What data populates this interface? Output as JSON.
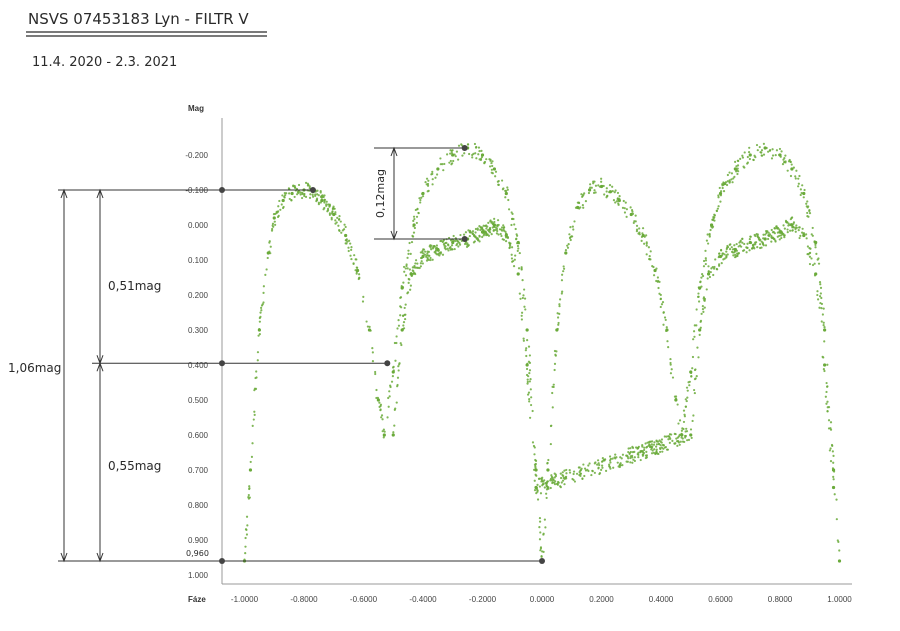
{
  "header": {
    "title": "NSVS 07453183 Lyn - FILTR V",
    "dates": "11.4. 2020 - 2.3. 2021"
  },
  "chart_data": {
    "type": "scatter",
    "title": "",
    "xlabel": "Fáze",
    "ylabel": "Mag",
    "xlim": [
      -1.1,
      1.05
    ],
    "ylim": [
      -0.27,
      1.02
    ],
    "y_inverted": true,
    "grid": false,
    "x_ticks": [
      "-1.0000",
      "-0.8000",
      "-0.6000",
      "-0.4000",
      "-0.2000",
      "0.0000",
      "0.2000",
      "0.4000",
      "0.6000",
      "0.8000",
      "1.0000"
    ],
    "x_tick_values": [
      -1.0,
      -0.8,
      -0.6,
      -0.4,
      -0.2,
      0.0,
      0.2,
      0.4,
      0.6,
      0.8,
      1.0
    ],
    "y_ticks": [
      "-0.200",
      "-0.100",
      "0.000",
      "0.100",
      "0.200",
      "0.300",
      "0.400",
      "0.500",
      "0.600",
      "0.700",
      "0.800",
      "0.900",
      "1.000"
    ],
    "y_tick_values": [
      -0.2,
      -0.1,
      0.0,
      0.1,
      0.2,
      0.3,
      0.4,
      0.5,
      0.6,
      0.7,
      0.8,
      0.9,
      1.0
    ],
    "series": [
      {
        "color": "#6aaa3a",
        "upper_branch": {
          "x": [
            -1.0,
            -0.98,
            -0.95,
            -0.92,
            -0.9,
            -0.87,
            -0.84,
            -0.8,
            -0.77,
            -0.74,
            -0.7,
            -0.66,
            -0.62,
            -0.58,
            -0.55,
            -0.53,
            -0.5,
            -0.47,
            -0.43,
            -0.4,
            -0.35,
            -0.3,
            -0.25,
            -0.2,
            -0.16,
            -0.12,
            -0.08,
            -0.05,
            -0.02,
            0.0,
            0.02,
            0.05,
            0.08,
            0.12,
            0.16,
            0.2,
            0.23,
            0.26,
            0.3,
            0.34,
            0.38,
            0.42,
            0.45,
            0.47,
            0.5,
            0.53,
            0.57,
            0.6,
            0.65,
            0.7,
            0.75,
            0.8,
            0.84,
            0.88,
            0.92,
            0.95,
            0.98,
            1.0
          ],
          "y": [
            0.96,
            0.7,
            0.3,
            0.08,
            -0.02,
            -0.07,
            -0.09,
            -0.1,
            -0.095,
            -0.07,
            -0.03,
            0.03,
            0.13,
            0.3,
            0.5,
            0.6,
            0.42,
            0.18,
            0.0,
            -0.09,
            -0.16,
            -0.2,
            -0.22,
            -0.2,
            -0.16,
            -0.09,
            0.05,
            0.3,
            0.7,
            0.96,
            0.7,
            0.3,
            0.08,
            -0.05,
            -0.1,
            -0.11,
            -0.095,
            -0.07,
            -0.03,
            0.03,
            0.13,
            0.3,
            0.5,
            0.6,
            0.42,
            0.18,
            0.0,
            -0.09,
            -0.16,
            -0.2,
            -0.22,
            -0.2,
            -0.16,
            -0.09,
            0.05,
            0.3,
            0.7,
            0.96
          ]
        },
        "lower_branch": {
          "x": [
            -0.5,
            -0.47,
            -0.44,
            -0.4,
            -0.35,
            -0.3,
            -0.25,
            -0.2,
            -0.16,
            -0.12,
            -0.08,
            -0.05,
            -0.02,
            0.5,
            0.53,
            0.56,
            0.6,
            0.65,
            0.7,
            0.75,
            0.8,
            0.84,
            0.88,
            0.92,
            0.95,
            0.98
          ],
          "y": [
            0.6,
            0.3,
            0.14,
            0.09,
            0.07,
            0.05,
            0.04,
            0.02,
            0.0,
            0.03,
            0.14,
            0.4,
            0.75,
            0.6,
            0.3,
            0.14,
            0.09,
            0.07,
            0.05,
            0.04,
            0.02,
            0.0,
            0.03,
            0.14,
            0.4,
            0.75
          ]
        }
      }
    ],
    "annotations": [
      {
        "label": "0,51mag",
        "x": [
          -1.0,
          -0.77
        ],
        "y": [
          -0.1,
          0.395
        ]
      },
      {
        "label": "0,55mag",
        "x": [
          -1.0,
          0.0
        ],
        "y": [
          0.395,
          0.96
        ]
      },
      {
        "label": "1,06mag",
        "x": [
          -1.0
        ],
        "y": [
          -0.1,
          0.96
        ]
      },
      {
        "label": "0,12mag",
        "x": [
          -0.26
        ],
        "y": [
          -0.22,
          0.04
        ]
      },
      {
        "label": "0,960",
        "x": [
          -1.0
        ],
        "y": [
          0.96
        ]
      }
    ]
  }
}
